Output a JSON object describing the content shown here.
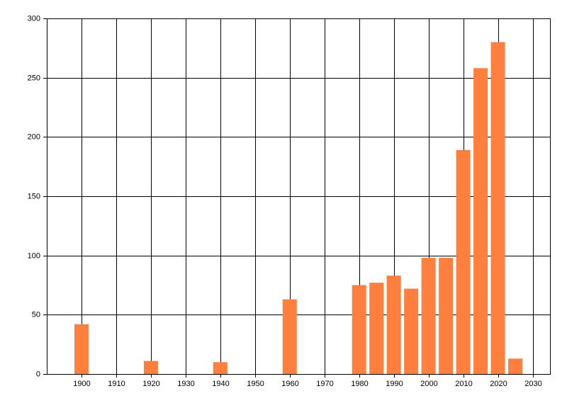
{
  "chart_data": {
    "type": "bar",
    "x": [
      1900,
      1920,
      1940,
      1960,
      1980,
      1985,
      1990,
      1995,
      2000,
      2005,
      2010,
      2015,
      2020,
      2025
    ],
    "values": [
      42,
      11,
      10,
      63,
      75,
      77,
      83,
      72,
      98,
      98,
      189,
      258,
      280,
      13
    ],
    "color": "#ff7f3f",
    "xlim": [
      1890,
      2035
    ],
    "xticks": [
      1900,
      1910,
      1920,
      1930,
      1940,
      1950,
      1960,
      1970,
      1980,
      1990,
      2000,
      2010,
      2020,
      2030
    ],
    "ylim": [
      0,
      300
    ],
    "yticks": [
      0,
      50,
      100,
      150,
      200,
      250,
      300
    ],
    "grid": true
  }
}
